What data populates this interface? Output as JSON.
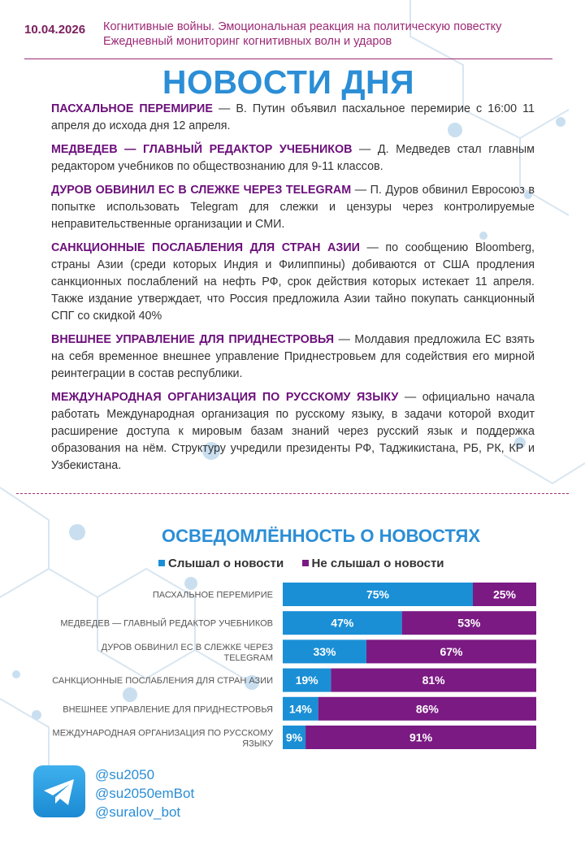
{
  "header": {
    "date": "10.04.2026",
    "subtitle_line1": "Когнитивные войны. Эмоциональная реакция на политическую повестку",
    "subtitle_line2": "Ежедневный мониторинг когнитивных волн и ударов"
  },
  "title": "НОВОСТИ ДНЯ",
  "news": [
    {
      "headline": "ПАСХАЛЬНОЕ ПЕРЕМИРИЕ",
      "text": " — В. Путин объявил пасхальное перемирие с 16:00 11 апреля до исхода дня 12 апреля."
    },
    {
      "headline": "МЕДВЕДЕВ — ГЛАВНЫЙ РЕДАКТОР УЧЕБНИКОВ",
      "text": " — Д. Медведев стал главным редактором учебников по обществознанию для 9-11 классов."
    },
    {
      "headline": "ДУРОВ ОБВИНИЛ ЕС В СЛЕЖКЕ ЧЕРЕЗ TELEGRAM",
      "text": " — П. Дуров обвинил Евросоюз в попытке использовать Telegram для слежки и цензуры через контролируемые неправительственные организации и СМИ."
    },
    {
      "headline": "САНКЦИОННЫЕ ПОСЛАБЛЕНИЯ ДЛЯ СТРАН АЗИИ",
      "text": " — по сообщению Bloomberg, страны Азии (среди которых Индия и Филиппины) добиваются от США продления санкционных послаблений на нефть РФ, срок действия которых истекает 11 апреля. Также издание утверждает, что Россия предложила Азии тайно покупать санкционный СПГ со скидкой 40%"
    },
    {
      "headline": "ВНЕШНЕЕ УПРАВЛЕНИЕ ДЛЯ ПРИДНЕСТРОВЬЯ",
      "text": " — Молдавия предложила ЕС взять на себя временное внешнее управление Приднестровьем для содействия его мирной реинтеграции в состав республики."
    },
    {
      "headline": "МЕЖДУНАРОДНАЯ ОРГАНИЗАЦИЯ ПО РУССКОМУ ЯЗЫКУ",
      "text": " — официально начала работать Международная организация по русскому языку, в задачи которой входит расширение доступа к мировым базам знаний через русский язык и поддержка образования на нём. Структуру учредили президенты РФ, Таджикистана, РБ, РК, КР и Узбекистана."
    }
  ],
  "chart_data": {
    "type": "bar",
    "orientation": "horizontal",
    "stacked": true,
    "title": "ОСВЕДОМЛЁННОСТЬ О НОВОСТЯХ",
    "categories": [
      "ПАСХАЛЬНОЕ ПЕРЕМИРИЕ",
      "МЕДВЕДЕВ — ГЛАВНЫЙ РЕДАКТОР УЧЕБНИКОВ",
      "ДУРОВ ОБВИНИЛ ЕС В СЛЕЖКЕ ЧЕРЕЗ TELEGRAM",
      "САНКЦИОННЫЕ ПОСЛАБЛЕНИЯ ДЛЯ СТРАН АЗИИ",
      "ВНЕШНЕЕ УПРАВЛЕНИЕ ДЛЯ ПРИДНЕСТРОВЬЯ",
      "МЕЖДУНАРОДНАЯ ОРГАНИЗАЦИЯ ПО РУССКОМУ ЯЗЫКУ"
    ],
    "series": [
      {
        "name": "Слышал о новости",
        "color": "#1a8fd6",
        "values": [
          75,
          47,
          33,
          19,
          14,
          9
        ]
      },
      {
        "name": "Не слышал о новости",
        "color": "#7b1a83",
        "values": [
          25,
          53,
          67,
          81,
          86,
          91
        ]
      }
    ],
    "value_suffix": "%",
    "xlim": [
      0,
      100
    ],
    "legend": "top",
    "grid": false
  },
  "footer": {
    "icon": "telegram-icon",
    "handles": [
      "@su2050",
      "@su2050emBot",
      "@suralov_bot"
    ]
  }
}
